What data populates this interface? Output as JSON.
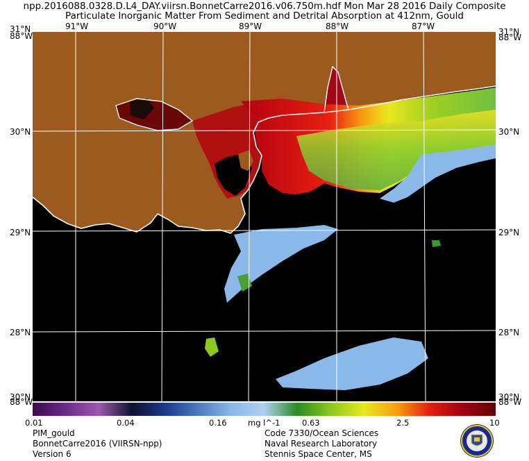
{
  "header": {
    "line1": "npp.2016088.0328.D.L4_DAY.viirsn.BonnetCarre2016.v06.750m.hdf    Mon Mar 28 2016 Daily Composite",
    "line2": "Particulate Inorganic Matter From Sediment and Detrital Absorption at 412nm, Gould"
  },
  "axes": {
    "lon_labels": [
      "91°W",
      "90°W",
      "89°W",
      "88°W",
      "87°W"
    ],
    "lat_labels": [
      "30°N",
      "29°N",
      "28°N"
    ],
    "corner_top_lat": "31°N",
    "corner_top_lon": "88°W",
    "corner_bottom_lat": "30°N",
    "corner_bottom_lon": "88°W"
  },
  "colorbar": {
    "tick_labels": [
      "0.01",
      "0.04",
      "0.16",
      "0.63",
      "2.5",
      "10"
    ],
    "units": "mg l^-1",
    "colors": [
      "#3a0a4a",
      "#6a2a8a",
      "#9a5ab0",
      "#101030",
      "#1a3a8a",
      "#4a7ac0",
      "#8ab8e8",
      "#b0d0f0",
      "#2a8a20",
      "#8ac820",
      "#e8e820",
      "#f8a010",
      "#e02010",
      "#a00010",
      "#600008"
    ]
  },
  "map": {
    "land_color": "#9c5a1e",
    "water_color": "#000000",
    "grid_color": "#ffffff"
  },
  "footer": {
    "left": [
      "PIM_gould",
      "BonnetCarre2016 (VIIRSN-npp)",
      "Version 6"
    ],
    "right": [
      "Code 7330/Ocean Sciences",
      "Naval Research Laboratory",
      "Stennis Space Center, MS"
    ]
  }
}
